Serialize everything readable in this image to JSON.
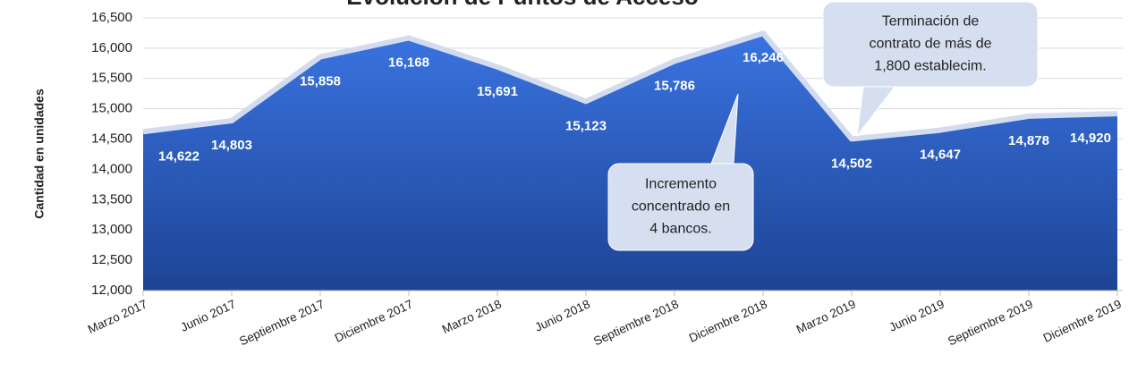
{
  "chart_data": {
    "type": "area",
    "title": "Evolución de Puntos de Acceso",
    "y_label": "Cantidad en unidades",
    "categories": [
      "Marzo 2017",
      "Junio 2017",
      "Septiembre 2017",
      "Diciembre 2017",
      "Marzo 2018",
      "Junio 2018",
      "Septiembre 2018",
      "Diciembre 2018",
      "Marzo 2019",
      "Junio 2019",
      "Septiembre 2019",
      "Diciembre 2019"
    ],
    "values": [
      14622,
      14803,
      15858,
      16168,
      15691,
      15123,
      15786,
      16246,
      14502,
      14647,
      14878,
      14920
    ],
    "value_labels": [
      "14,622",
      "14,803",
      "15,858",
      "16,168",
      "15,691",
      "15,123",
      "15,786",
      "16,246",
      "14,502",
      "14,647",
      "14,878",
      "14,920"
    ],
    "color": "#2f62c9",
    "ylim": [
      12000,
      16500
    ],
    "yticks": [
      {
        "value": 12000,
        "label": "12,000"
      },
      {
        "value": 12500,
        "label": "12,500"
      },
      {
        "value": 13000,
        "label": "13,000"
      },
      {
        "value": 13500,
        "label": "13,500"
      },
      {
        "value": 14000,
        "label": "14,000"
      },
      {
        "value": 14500,
        "label": "14,500"
      },
      {
        "value": 15000,
        "label": "15,000"
      },
      {
        "value": 15500,
        "label": "15,500"
      },
      {
        "value": 16000,
        "label": "16,000"
      },
      {
        "value": 16500,
        "label": "16,500"
      }
    ],
    "grid": true,
    "annotations": [
      {
        "lines": [
          "Incremento",
          "concentrado en",
          "4 bancos."
        ]
      },
      {
        "lines": [
          "Terminación de",
          "contrato de más de",
          "1,800 establecim."
        ]
      }
    ]
  }
}
